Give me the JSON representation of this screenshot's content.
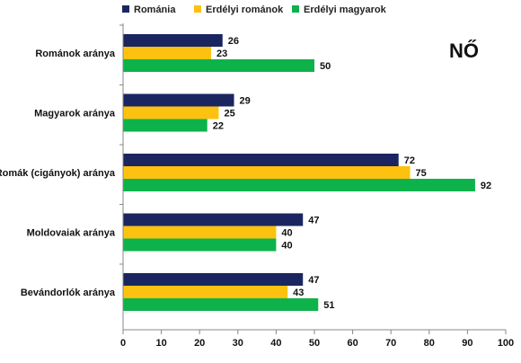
{
  "badge": "NŐ",
  "chart_data": {
    "type": "bar",
    "orientation": "horizontal",
    "categories": [
      "Románok aránya",
      "Magyarok aránya",
      "Romák (cigányok) aránya",
      "Moldovaiak aránya",
      "Bevándorlók aránya"
    ],
    "series": [
      {
        "name": "Románia",
        "color": "#1b2660",
        "values": [
          26,
          29,
          72,
          47,
          47
        ]
      },
      {
        "name": "Erdélyi románok",
        "color": "#fdc10f",
        "values": [
          23,
          25,
          75,
          40,
          43
        ]
      },
      {
        "name": "Erdélyi magyarok",
        "color": "#0eb24a",
        "values": [
          50,
          22,
          92,
          40,
          51
        ]
      }
    ],
    "xlim": [
      0,
      100
    ],
    "xticks": [
      0,
      10,
      20,
      30,
      40,
      50,
      60,
      70,
      80,
      90,
      100
    ],
    "grid": false,
    "legend": "top",
    "data_labels": true
  }
}
